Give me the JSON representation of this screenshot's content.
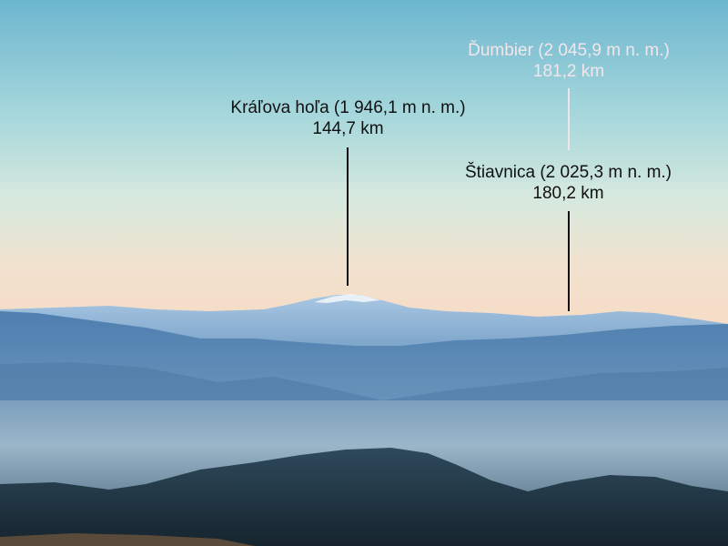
{
  "peaks": [
    {
      "id": "kralova-hola",
      "name": "Kráľova hoľa (1 946,1 m n. m.)",
      "distance": "144,7 km",
      "color": "#111111"
    },
    {
      "id": "dumbier",
      "name": "Ďumbier (2 045,9 m n. m.)",
      "distance": "181,2 km",
      "color": "#f2e6ea"
    },
    {
      "id": "stiavnica",
      "name": "Štiavnica (2 025,3 m n. m.)",
      "distance": "180,2 km",
      "color": "#111111"
    }
  ],
  "colors": {
    "sky_top": "#6fb9cf",
    "sky_mid": "#bfe3e0",
    "horizon_haze": "#f4dfc8",
    "far_mountains": "#8fb6d6",
    "mid_hills": "#3d6f9f",
    "foreground_hill": "#1f3343"
  }
}
